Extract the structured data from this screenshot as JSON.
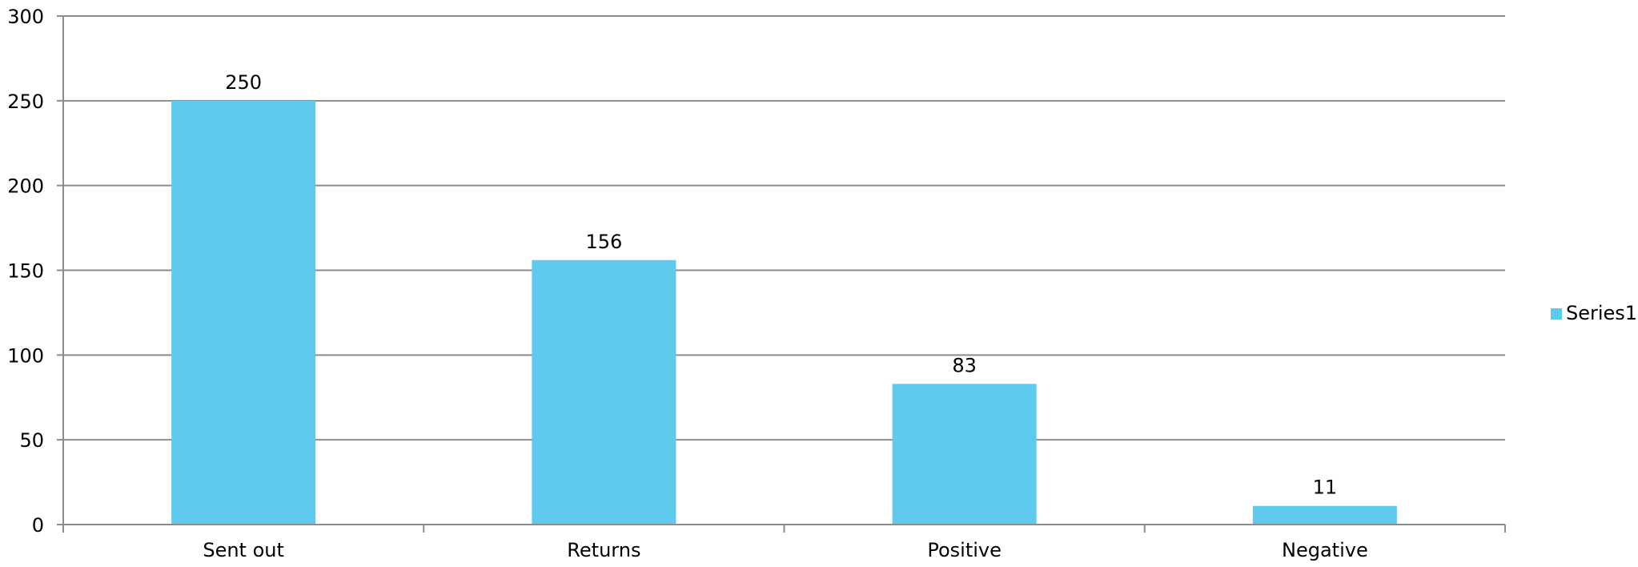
{
  "chart_data": {
    "type": "bar",
    "title": "",
    "xlabel": "",
    "ylabel": "",
    "categories": [
      "Sent out",
      "Returns",
      "Positive",
      "Negative"
    ],
    "series": [
      {
        "name": "Series1",
        "values": [
          250,
          156,
          83,
          11
        ],
        "color": "#5ecbee"
      }
    ],
    "ylim": [
      0,
      300
    ],
    "yticks": [
      0,
      50,
      100,
      150,
      200,
      250,
      300
    ],
    "ytick_labels": [
      "0",
      "50",
      "100",
      "150",
      "200",
      "250",
      "300"
    ],
    "grid": true,
    "grid_color": "#8c8c8c",
    "axis_color": "#8c8c8c",
    "data_labels": [
      "250",
      "156",
      "83",
      "11"
    ],
    "legend": {
      "position": "right",
      "entries": [
        "Series1"
      ]
    }
  }
}
